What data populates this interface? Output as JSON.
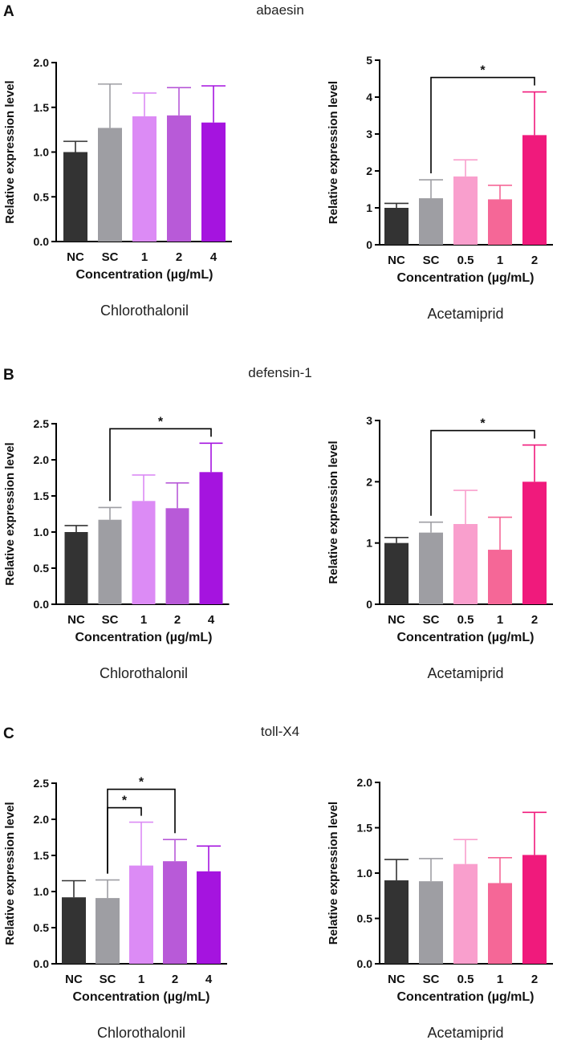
{
  "figure": {
    "panels": [
      {
        "letter": "A",
        "gene": "abaesin"
      },
      {
        "letter": "B",
        "gene": "defensin-1"
      },
      {
        "letter": "C",
        "gene": "toll-X4"
      }
    ]
  },
  "chart_data": [
    {
      "type": "bar",
      "panel": "A",
      "gene": "abaesin",
      "subtitle": "Chlorothalonil",
      "xlabel": "Concentration (µg/mL)",
      "ylabel": "Relative expression level",
      "categories": [
        "NC",
        "SC",
        "1",
        "2",
        "4"
      ],
      "values": [
        1.0,
        1.27,
        1.4,
        1.41,
        1.33
      ],
      "errors": [
        0.12,
        0.49,
        0.26,
        0.31,
        0.41
      ],
      "colors": [
        "#333333",
        "#9e9ea3",
        "#dc8bf5",
        "#b85ad8",
        "#a514df"
      ],
      "ylim": [
        0,
        2.0
      ],
      "yticks": [
        "0.0",
        "0.5",
        "1.0",
        "1.5",
        "2.0"
      ],
      "significance": []
    },
    {
      "type": "bar",
      "panel": "A",
      "gene": "abaesin",
      "subtitle": "Acetamiprid",
      "xlabel": "Concentration (µg/mL)",
      "ylabel": "Relative expression level",
      "categories": [
        "NC",
        "SC",
        "0.5",
        "1",
        "2"
      ],
      "values": [
        1.0,
        1.26,
        1.85,
        1.23,
        2.97
      ],
      "errors": [
        0.12,
        0.5,
        0.45,
        0.38,
        1.17
      ],
      "colors": [
        "#333333",
        "#9e9ea3",
        "#f99fcd",
        "#f56797",
        "#f01a7c"
      ],
      "ylim": [
        0,
        5
      ],
      "yticks": [
        "0",
        "1",
        "2",
        "3",
        "4",
        "5"
      ],
      "significance": [
        {
          "from": 1,
          "to": 4,
          "label": "*"
        }
      ]
    },
    {
      "type": "bar",
      "panel": "B",
      "gene": "defensin-1",
      "subtitle": "Chlorothalonil",
      "xlabel": "Concentration (µg/mL)",
      "ylabel": "Relative expression level",
      "categories": [
        "NC",
        "SC",
        "1",
        "2",
        "4"
      ],
      "values": [
        1.0,
        1.17,
        1.43,
        1.33,
        1.83
      ],
      "errors": [
        0.09,
        0.17,
        0.36,
        0.35,
        0.4
      ],
      "colors": [
        "#333333",
        "#9e9ea3",
        "#dc8bf5",
        "#b85ad8",
        "#a514df"
      ],
      "ylim": [
        0,
        2.5
      ],
      "yticks": [
        "0.0",
        "0.5",
        "1.0",
        "1.5",
        "2.0",
        "2.5"
      ],
      "significance": [
        {
          "from": 1,
          "to": 4,
          "label": "*"
        }
      ]
    },
    {
      "type": "bar",
      "panel": "B",
      "gene": "defensin-1",
      "subtitle": "Acetamiprid",
      "xlabel": "Concentration (µg/mL)",
      "ylabel": "Relative expression level",
      "categories": [
        "NC",
        "SC",
        "0.5",
        "1",
        "2"
      ],
      "values": [
        1.0,
        1.17,
        1.31,
        0.89,
        2.0
      ],
      "errors": [
        0.09,
        0.17,
        0.55,
        0.53,
        0.6
      ],
      "colors": [
        "#333333",
        "#9e9ea3",
        "#f99fcd",
        "#f56797",
        "#f01a7c"
      ],
      "ylim": [
        0,
        3
      ],
      "yticks": [
        "0",
        "1",
        "2",
        "3"
      ],
      "significance": [
        {
          "from": 1,
          "to": 4,
          "label": "*"
        }
      ]
    },
    {
      "type": "bar",
      "panel": "C",
      "gene": "toll-X4",
      "subtitle": "Chlorothalonil",
      "xlabel": "Concentration (µg/mL)",
      "ylabel": "Relative expression level",
      "categories": [
        "NC",
        "SC",
        "1",
        "2",
        "4"
      ],
      "values": [
        0.92,
        0.91,
        1.36,
        1.42,
        1.28
      ],
      "errors": [
        0.23,
        0.25,
        0.6,
        0.3,
        0.35
      ],
      "colors": [
        "#333333",
        "#9e9ea3",
        "#dc8bf5",
        "#b85ad8",
        "#a514df"
      ],
      "ylim": [
        0,
        2.5
      ],
      "yticks": [
        "0.0",
        "0.5",
        "1.0",
        "1.5",
        "2.0",
        "2.5"
      ],
      "significance": [
        {
          "from": 1,
          "to": 2,
          "label": "*"
        },
        {
          "from": 1,
          "to": 3,
          "label": "*"
        }
      ]
    },
    {
      "type": "bar",
      "panel": "C",
      "gene": "toll-X4",
      "subtitle": "Acetamiprid",
      "xlabel": "Concentration (µg/mL)",
      "ylabel": "Relative expression level",
      "categories": [
        "NC",
        "SC",
        "0.5",
        "1",
        "2"
      ],
      "values": [
        0.92,
        0.91,
        1.1,
        0.89,
        1.2
      ],
      "errors": [
        0.23,
        0.25,
        0.27,
        0.28,
        0.47
      ],
      "colors": [
        "#333333",
        "#9e9ea3",
        "#f99fcd",
        "#f56797",
        "#f01a7c"
      ],
      "ylim": [
        0,
        2.0
      ],
      "yticks": [
        "0.0",
        "0.5",
        "1.0",
        "1.5",
        "2.0"
      ],
      "significance": []
    }
  ]
}
